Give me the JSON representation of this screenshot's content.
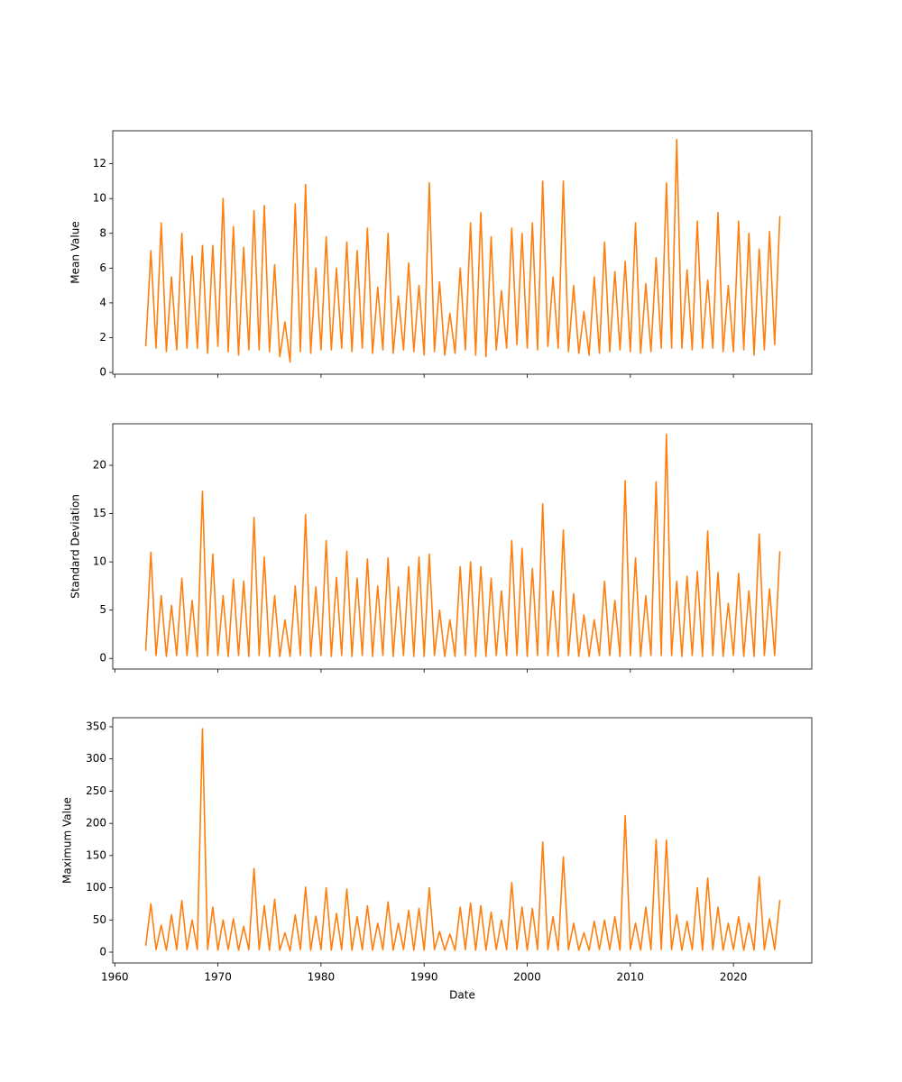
{
  "chart_data": [
    {
      "type": "line",
      "ylabel": "Mean Value",
      "color": "#ff7f0e",
      "ylim": [
        -0.1,
        13.9
      ],
      "yticks": [
        0,
        2,
        4,
        6,
        8,
        10,
        12
      ],
      "x": [
        1963,
        1963.5,
        1964,
        1964.5,
        1965,
        1965.5,
        1966,
        1966.5,
        1967,
        1967.5,
        1968,
        1968.5,
        1969,
        1969.5,
        1970,
        1970.5,
        1971,
        1971.5,
        1972,
        1972.5,
        1973,
        1973.5,
        1974,
        1974.5,
        1975,
        1975.5,
        1976,
        1976.5,
        1977,
        1977.5,
        1978,
        1978.5,
        1979,
        1979.5,
        1980,
        1980.5,
        1981,
        1981.5,
        1982,
        1982.5,
        1983,
        1983.5,
        1984,
        1984.5,
        1985,
        1985.5,
        1986,
        1986.5,
        1987,
        1987.5,
        1988,
        1988.5,
        1989,
        1989.5,
        1990,
        1990.5,
        1991,
        1991.5,
        1992,
        1992.5,
        1993,
        1993.5,
        1994,
        1994.5,
        1995,
        1995.5,
        1996,
        1996.5,
        1997,
        1997.5,
        1998,
        1998.5,
        1999,
        1999.5,
        2000,
        2000.5,
        2001,
        2001.5,
        2002,
        2002.5,
        2003,
        2003.5,
        2004,
        2004.5,
        2005,
        2005.5,
        2006,
        2006.5,
        2007,
        2007.5,
        2008,
        2008.5,
        2009,
        2009.5,
        2010,
        2010.5,
        2011,
        2011.5,
        2012,
        2012.5,
        2013,
        2013.5,
        2014,
        2014.5,
        2015,
        2015.5,
        2016,
        2016.5,
        2017,
        2017.5,
        2018,
        2018.5,
        2019,
        2019.5,
        2020,
        2020.5,
        2021,
        2021.5,
        2022,
        2022.5,
        2023,
        2023.5,
        2024,
        2024.5
      ],
      "values": [
        1.5,
        7,
        1.4,
        8.6,
        1.2,
        5.5,
        1.3,
        8,
        1.4,
        6.7,
        1.4,
        7.3,
        1.1,
        7.3,
        1.5,
        10,
        1.2,
        8.4,
        1.0,
        7.2,
        1.3,
        9.3,
        1.3,
        9.6,
        1.2,
        6.2,
        0.9,
        2.9,
        0.6,
        9.7,
        1.2,
        10.8,
        1.1,
        6,
        1.3,
        7.8,
        1.3,
        6,
        1.4,
        7.5,
        1.2,
        7,
        1.4,
        8.3,
        1.1,
        4.9,
        1.3,
        8,
        1.1,
        4.4,
        1.3,
        6.3,
        1.2,
        5,
        1.0,
        10.9,
        1.2,
        5.2,
        1.0,
        3.4,
        1.1,
        6,
        1.3,
        8.6,
        1.0,
        9.2,
        0.9,
        7.8,
        1.3,
        4.7,
        1.4,
        8.3,
        1.6,
        8,
        1.4,
        8.6,
        1.3,
        11,
        1.5,
        5.5,
        1.4,
        11,
        1.2,
        5,
        1.1,
        3.5,
        1.0,
        5.5,
        1.1,
        7.5,
        1.2,
        5.8,
        1.3,
        6.4,
        1.2,
        8.6,
        1.1,
        5.1,
        1.2,
        6.6,
        1.4,
        10.9,
        1.4,
        13.4,
        1.4,
        5.9,
        1.3,
        8.7,
        1.4,
        5.3,
        1.4,
        9.2,
        1.2,
        5,
        1.2,
        8.7,
        1.3,
        8,
        1.0,
        7.1,
        1.3,
        8.1,
        1.6,
        9
      ]
    },
    {
      "type": "line",
      "ylabel": "Standard Deviation",
      "color": "#ff7f0e",
      "ylim": [
        -1.1,
        24.3
      ],
      "yticks": [
        0,
        5,
        10,
        15,
        20
      ],
      "x": [
        1963,
        1963.5,
        1964,
        1964.5,
        1965,
        1965.5,
        1966,
        1966.5,
        1967,
        1967.5,
        1968,
        1968.5,
        1969,
        1969.5,
        1970,
        1970.5,
        1971,
        1971.5,
        1972,
        1972.5,
        1973,
        1973.5,
        1974,
        1974.5,
        1975,
        1975.5,
        1976,
        1976.5,
        1977,
        1977.5,
        1978,
        1978.5,
        1979,
        1979.5,
        1980,
        1980.5,
        1981,
        1981.5,
        1982,
        1982.5,
        1983,
        1983.5,
        1984,
        1984.5,
        1985,
        1985.5,
        1986,
        1986.5,
        1987,
        1987.5,
        1988,
        1988.5,
        1989,
        1989.5,
        1990,
        1990.5,
        1991,
        1991.5,
        1992,
        1992.5,
        1993,
        1993.5,
        1994,
        1994.5,
        1995,
        1995.5,
        1996,
        1996.5,
        1997,
        1997.5,
        1998,
        1998.5,
        1999,
        1999.5,
        2000,
        2000.5,
        2001,
        2001.5,
        2002,
        2002.5,
        2003,
        2003.5,
        2004,
        2004.5,
        2005,
        2005.5,
        2006,
        2006.5,
        2007,
        2007.5,
        2008,
        2008.5,
        2009,
        2009.5,
        2010,
        2010.5,
        2011,
        2011.5,
        2012,
        2012.5,
        2013,
        2013.5,
        2014,
        2014.5,
        2015,
        2015.5,
        2016,
        2016.5,
        2017,
        2017.5,
        2018,
        2018.5,
        2019,
        2019.5,
        2020,
        2020.5,
        2021,
        2021.5,
        2022,
        2022.5,
        2023,
        2023.5,
        2024,
        2024.5
      ],
      "values": [
        0.8,
        11,
        0.3,
        6.5,
        0.2,
        5.5,
        0.3,
        8.3,
        0.3,
        6,
        0.2,
        17.3,
        0.3,
        10.8,
        0.3,
        6.5,
        0.2,
        8.2,
        0.3,
        8,
        0.2,
        14.6,
        0.3,
        10.5,
        0.2,
        6.5,
        0.2,
        4,
        0.2,
        7.5,
        0.3,
        14.9,
        0.2,
        7.4,
        0.3,
        12.2,
        0.2,
        8.4,
        0.3,
        11.1,
        0.2,
        8.3,
        0.3,
        10.3,
        0.2,
        7.5,
        0.3,
        10.4,
        0.2,
        7.4,
        0.3,
        9.5,
        0.2,
        10.5,
        0.2,
        10.8,
        0.3,
        5,
        0.2,
        4,
        0.2,
        9.5,
        0.3,
        10,
        0.2,
        9.5,
        0.2,
        8.3,
        0.3,
        7,
        0.3,
        12.2,
        0.3,
        11.4,
        0.2,
        9.3,
        0.3,
        16,
        0.3,
        7,
        0.2,
        13.3,
        0.3,
        6.7,
        0.2,
        4.5,
        0.2,
        4,
        0.3,
        8,
        0.3,
        6,
        0.2,
        18.4,
        0.3,
        10.4,
        0.2,
        6.5,
        0.3,
        18.3,
        0.3,
        23.2,
        0.3,
        8,
        0.2,
        8.5,
        0.3,
        9,
        0.2,
        13.2,
        0.3,
        8.9,
        0.2,
        5.7,
        0.3,
        8.8,
        0.2,
        7,
        0.2,
        12.9,
        0.3,
        7.2,
        0.3,
        11.1
      ]
    },
    {
      "type": "line",
      "ylabel": "Maximum Value",
      "xlabel": "Date",
      "color": "#ff7f0e",
      "ylim": [
        -16.8,
        364
      ],
      "yticks": [
        0,
        50,
        100,
        150,
        200,
        250,
        300,
        350
      ],
      "xlim": [
        1959.8,
        2027.6
      ],
      "xticks": [
        1960,
        1970,
        1980,
        1990,
        2000,
        2010,
        2020
      ],
      "x": [
        1963,
        1963.5,
        1964,
        1964.5,
        1965,
        1965.5,
        1966,
        1966.5,
        1967,
        1967.5,
        1968,
        1968.5,
        1969,
        1969.5,
        1970,
        1970.5,
        1971,
        1971.5,
        1972,
        1972.5,
        1973,
        1973.5,
        1974,
        1974.5,
        1975,
        1975.5,
        1976,
        1976.5,
        1977,
        1977.5,
        1978,
        1978.5,
        1979,
        1979.5,
        1980,
        1980.5,
        1981,
        1981.5,
        1982,
        1982.5,
        1983,
        1983.5,
        1984,
        1984.5,
        1985,
        1985.5,
        1986,
        1986.5,
        1987,
        1987.5,
        1988,
        1988.5,
        1989,
        1989.5,
        1990,
        1990.5,
        1991,
        1991.5,
        1992,
        1992.5,
        1993,
        1993.5,
        1994,
        1994.5,
        1995,
        1995.5,
        1996,
        1996.5,
        1997,
        1997.5,
        1998,
        1998.5,
        1999,
        1999.5,
        2000,
        2000.5,
        2001,
        2001.5,
        2002,
        2002.5,
        2003,
        2003.5,
        2004,
        2004.5,
        2005,
        2005.5,
        2006,
        2006.5,
        2007,
        2007.5,
        2008,
        2008.5,
        2009,
        2009.5,
        2010,
        2010.5,
        2011,
        2011.5,
        2012,
        2012.5,
        2013,
        2013.5,
        2014,
        2014.5,
        2015,
        2015.5,
        2016,
        2016.5,
        2017,
        2017.5,
        2018,
        2018.5,
        2019,
        2019.5,
        2020,
        2020.5,
        2021,
        2021.5,
        2022,
        2022.5,
        2023,
        2023.5,
        2024,
        2024.5
      ],
      "values": [
        10,
        75,
        4,
        42,
        3,
        58,
        4,
        80,
        4,
        50,
        4,
        347,
        4,
        70,
        3,
        50,
        4,
        52,
        3,
        40,
        4,
        130,
        4,
        72,
        3,
        82,
        3,
        30,
        2,
        58,
        4,
        101,
        3,
        56,
        4,
        100,
        3,
        60,
        4,
        98,
        3,
        55,
        4,
        72,
        3,
        45,
        4,
        78,
        3,
        45,
        4,
        65,
        3,
        68,
        3,
        100,
        4,
        32,
        3,
        28,
        3,
        70,
        4,
        76,
        3,
        72,
        3,
        62,
        4,
        50,
        4,
        108,
        4,
        70,
        3,
        68,
        4,
        171,
        4,
        55,
        3,
        148,
        4,
        45,
        3,
        30,
        3,
        48,
        4,
        50,
        4,
        55,
        3,
        212,
        4,
        45,
        3,
        70,
        4,
        175,
        4,
        174,
        4,
        58,
        3,
        48,
        4,
        100,
        3,
        115,
        4,
        70,
        3,
        45,
        4,
        55,
        3,
        45,
        3,
        117,
        4,
        52,
        4,
        81
      ]
    }
  ]
}
